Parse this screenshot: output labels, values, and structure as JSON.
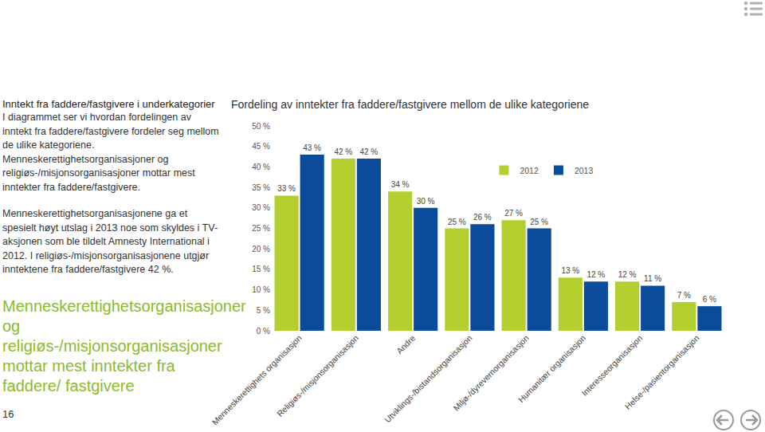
{
  "page": {
    "heading": "Inntekt fra faddere/fastgivere i underkategorier",
    "paragraphs": [
      "I diagrammet ser vi hvordan fordelingen av inntekt fra faddere/fastgivere fordeler seg mellom de ulike kategoriene. Menneskerettighetsorganisasjoner og religiøs-/misjonsorganisasjoner mottar mest inntekter fra faddere/fastgivere.",
      "Menneskerettighetsorganisasjonene ga et spesielt høyt utslag i 2013 noe som skyldes i TV- aksjonen som ble tildelt Amnesty International i 2012. I religiøs-/misjonsorganisasjonene utgjør inntektene fra faddere/fastgivere 42 %."
    ],
    "quote": "Menneskerettighetsorganisasjoner og religiøs-/misjonsorganisasjoner mottar mest inntekter fra faddere/ fastgivere",
    "page_number": "16"
  },
  "chart_data": {
    "type": "bar",
    "title": "Fordeling av inntekter fra faddere/fastgivere mellom de ulike kategoriene",
    "categories": [
      "Menneskerettighets organisasjon",
      "Religiøs-/misjonsorganisasjon",
      "Andre",
      "Utviklings-/bistandsorganisasjon",
      "Miljø-/dyrevernorganisasjon",
      "Humanitær organisasjon",
      "Interesseorganisasjon",
      "Helse-/pasientorganisasjon"
    ],
    "series": [
      {
        "name": "2012",
        "color": "#b3cf2f",
        "values": [
          33,
          42,
          34,
          25,
          27,
          13,
          12,
          7
        ],
        "value_labels": [
          "33 %",
          "42 %",
          "34 %",
          "25 %",
          "27 %",
          "13 %",
          "12 %",
          "7 %"
        ]
      },
      {
        "name": "2013",
        "color": "#0b4b9c",
        "values": [
          43,
          42,
          30,
          26,
          25,
          12,
          11,
          6
        ],
        "value_labels": [
          "43 %",
          "42 %",
          "30 %",
          "26 %",
          "25 %",
          "12 %",
          "11 %",
          "6 %"
        ]
      }
    ],
    "ylim": [
      0,
      50
    ],
    "yticks": [
      {
        "value": 0,
        "label": "0 %"
      },
      {
        "value": 5,
        "label": "5 %"
      },
      {
        "value": 10,
        "label": "10 %"
      },
      {
        "value": 15,
        "label": "15 %"
      },
      {
        "value": 20,
        "label": "20 %"
      },
      {
        "value": 25,
        "label": "25 %"
      },
      {
        "value": 30,
        "label": "30 %"
      },
      {
        "value": 35,
        "label": "35 %"
      },
      {
        "value": 40,
        "label": "40 %"
      },
      {
        "value": 45,
        "label": "45 %"
      },
      {
        "value": 50,
        "label": "50 %"
      }
    ],
    "grid": false,
    "legend": "top right",
    "data_labels": true
  }
}
